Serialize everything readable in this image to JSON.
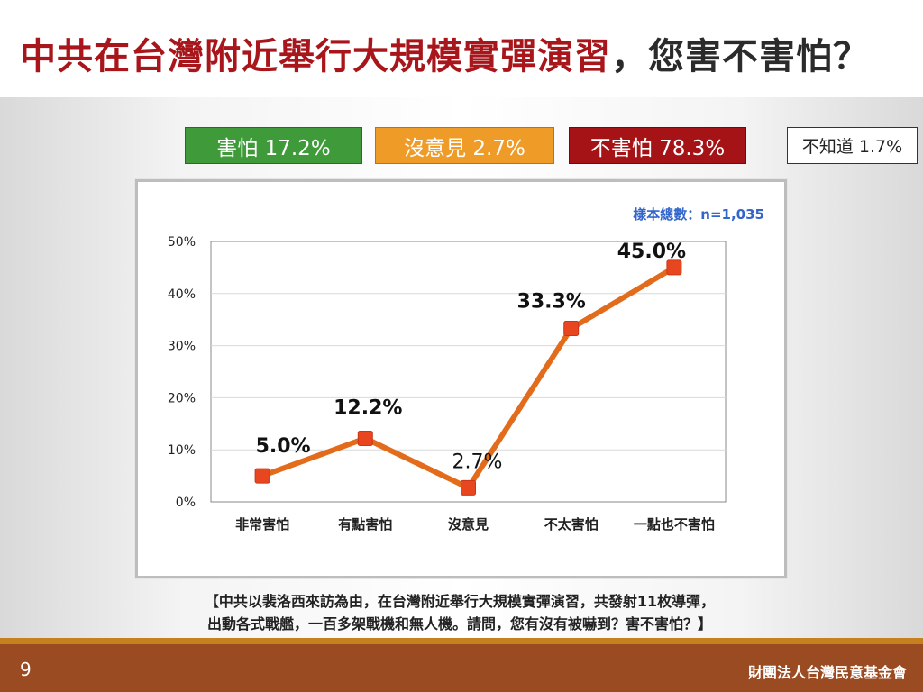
{
  "title": {
    "main": "中共在台灣附近舉行大規模實彈演習",
    "question": "，您害不害怕？"
  },
  "summary": {
    "fear": "害怕 17.2%",
    "no_opinion": "沒意見 2.7%",
    "not_fear": "不害怕 78.3%",
    "dont_know": "不知道 1.7%"
  },
  "colors": {
    "title_red": "#a8161b",
    "fear_green": "#3f9a3a",
    "no_opinion_orange": "#ee9b28",
    "not_fear_red": "#a51316",
    "line_orange": "#e36c1c",
    "marker_red": "#e8461e",
    "sample_blue": "#3366cc",
    "footer_brown": "#9a4b22",
    "footer_stripe": "#c6811f"
  },
  "chart_data": {
    "type": "line",
    "categories": [
      "非常害怕",
      "有點害怕",
      "沒意見",
      "不太害怕",
      "一點也不害怕"
    ],
    "values": [
      5.0,
      12.2,
      2.7,
      33.3,
      45.0
    ],
    "data_labels": [
      "5.0%",
      "12.2%",
      "2.7%",
      "33.3%",
      "45.0%"
    ],
    "yticks": [
      "0%",
      "10%",
      "20%",
      "30%",
      "40%",
      "50%"
    ],
    "ylim": [
      0,
      50
    ],
    "sample_note": "樣本總數：n=1,035",
    "grid": true,
    "legend": "none"
  },
  "footnote": {
    "line1": "【中共以裴洛西來訪為由，在台灣附近舉行大規模實彈演習，共發射11枚導彈，",
    "line2": "出動各式戰艦，一百多架戰機和無人機。請問，您有沒有被嚇到？害不害怕？】"
  },
  "footer": {
    "page": "9",
    "org": "財團法人台灣民意基金會"
  }
}
